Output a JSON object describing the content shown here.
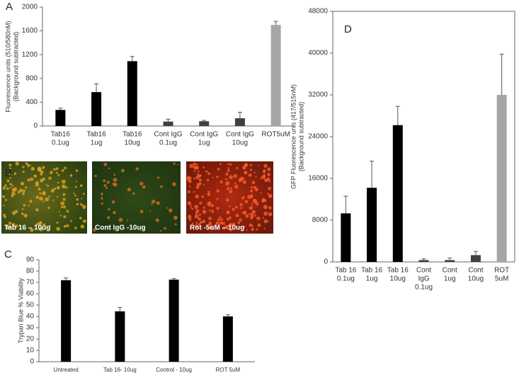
{
  "chart_data": [
    {
      "type": "bar",
      "panel": "A",
      "y_label": [
        "Fluorescence units (510/580nM)",
        "(Background subtracted)"
      ],
      "categories": [
        [
          "Tab16",
          "0.1ug"
        ],
        [
          "Tab16",
          "1ug"
        ],
        [
          "Tab16",
          "10ug"
        ],
        [
          "Cont IgG",
          "0.1ug"
        ],
        [
          "Cont IgG",
          "1ug"
        ],
        [
          "Cont IgG",
          "10ug"
        ],
        [
          "ROT5uM"
        ]
      ],
      "values": [
        270,
        570,
        1090,
        75,
        80,
        130,
        1700
      ],
      "errors": [
        30,
        140,
        80,
        40,
        15,
        100,
        60
      ],
      "colors": [
        "#000000",
        "#000000",
        "#000000",
        "#404040",
        "#404040",
        "#404040",
        "#a6a6a6"
      ],
      "ylim": [
        0,
        2000
      ],
      "yticks": [
        0,
        400,
        800,
        1200,
        1600,
        2000
      ]
    },
    {
      "type": "bar",
      "panel": "C",
      "y_label": [
        "Trypan Blue % Viability"
      ],
      "categories": [
        [
          "Untreated"
        ],
        [
          "Tab 16- 10ug"
        ],
        [
          "Control - 10ug"
        ],
        [
          "ROT   5uM"
        ]
      ],
      "values": [
        72,
        44.5,
        72.5,
        40
      ],
      "errors": [
        2,
        3.5,
        1,
        1.5
      ],
      "colors": [
        "#000000",
        "#000000",
        "#000000",
        "#000000"
      ],
      "ylim": [
        0,
        90
      ],
      "yticks": [
        0,
        10,
        20,
        30,
        40,
        50,
        60,
        70,
        80,
        90
      ]
    },
    {
      "type": "bar",
      "panel": "D",
      "y_label": [
        "GFP Fluorescence unts (417/515nM)",
        "(Background subtracted)"
      ],
      "categories": [
        [
          "Tab 16",
          "0.1ug"
        ],
        [
          "Tab 16",
          "1ug"
        ],
        [
          "Tab 16",
          "10ug"
        ],
        [
          "Cont",
          "IgG",
          "0.1ug"
        ],
        [
          "Cont",
          "1ug"
        ],
        [
          "Cont",
          "10ug"
        ],
        [
          "ROT",
          "5uM"
        ]
      ],
      "values": [
        9300,
        14200,
        26200,
        350,
        350,
        1300,
        32000
      ],
      "errors": [
        3300,
        5100,
        3600,
        250,
        400,
        700,
        7800
      ],
      "colors": [
        "#000000",
        "#000000",
        "#000000",
        "#404040",
        "#404040",
        "#404040",
        "#a6a6a6"
      ],
      "ylim": [
        0,
        48000
      ],
      "yticks": [
        0,
        8000,
        16000,
        24000,
        32000,
        40000,
        48000
      ]
    }
  ],
  "micrographs": {
    "panel": "B",
    "captions": [
      "Tab 16 – 10ug",
      "Cont  IgG  -10ug",
      "Rot  -5uM  – 10ug"
    ]
  }
}
